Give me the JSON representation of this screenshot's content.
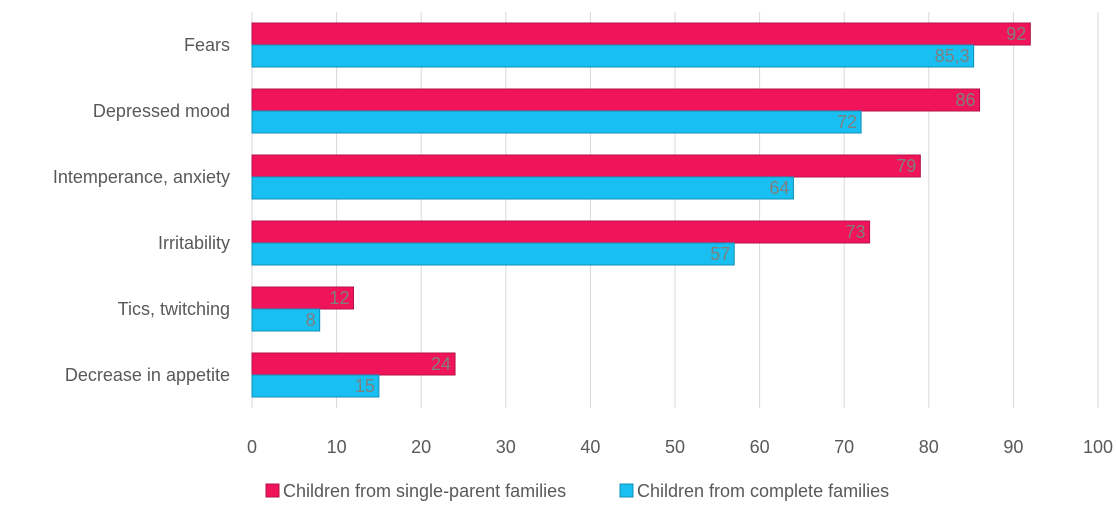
{
  "chart_data": {
    "type": "bar",
    "orientation": "horizontal",
    "categories": [
      "Fears",
      "Depressed mood",
      "Intemperance, anxiety",
      "Irritability",
      "Tics, twitching",
      "Decrease in appetite"
    ],
    "series": [
      {
        "name": "Children from single-parent families",
        "color": "#f0145a",
        "values": [
          92,
          86,
          79,
          73,
          12,
          24
        ],
        "labels": [
          "92",
          "86",
          "79",
          "73",
          "12",
          "24"
        ]
      },
      {
        "name": "Children from complete families",
        "color": "#18bff0",
        "values": [
          85.3,
          72,
          64,
          57,
          8,
          15
        ],
        "labels": [
          "85,3",
          "72",
          "64",
          "57",
          "8",
          "15"
        ]
      }
    ],
    "xlim": [
      0,
      100
    ],
    "xticks": [
      "0",
      "10",
      "20",
      "30",
      "40",
      "50",
      "60",
      "70",
      "80",
      "90",
      "100"
    ],
    "grid": true,
    "legend_position": "bottom",
    "title": "",
    "xlabel": "",
    "ylabel": ""
  }
}
